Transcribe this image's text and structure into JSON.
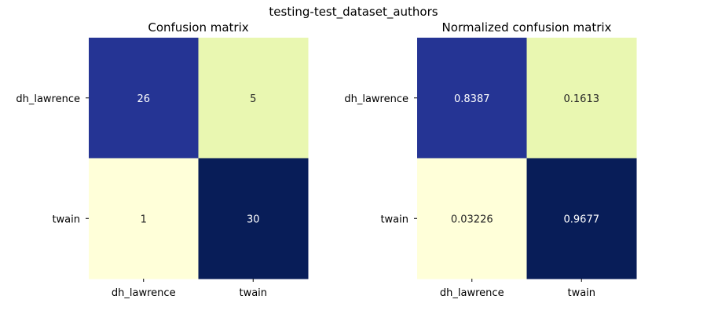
{
  "figure_title": "testing-test_dataset_authors",
  "chart_data": [
    {
      "type": "heatmap",
      "title": "Confusion matrix",
      "xlabel": "",
      "ylabel": "",
      "x_categories": [
        "dh_lawrence",
        "twain"
      ],
      "y_categories": [
        "dh_lawrence",
        "twain"
      ],
      "values": [
        [
          26,
          5
        ],
        [
          1,
          30
        ]
      ],
      "labels": [
        [
          "26",
          "5"
        ],
        [
          "1",
          "30"
        ]
      ],
      "colormap": "YlGnBu",
      "cell_colors": [
        [
          "#253494",
          "#e9f7b1"
        ],
        [
          "#ffffd9",
          "#081d58"
        ]
      ],
      "text_colors": [
        [
          "#ffffff",
          "#262626"
        ],
        [
          "#262626",
          "#ffffff"
        ]
      ],
      "colorbar": false
    },
    {
      "type": "heatmap",
      "title": "Normalized confusion matrix",
      "xlabel": "",
      "ylabel": "",
      "x_categories": [
        "dh_lawrence",
        "twain"
      ],
      "y_categories": [
        "dh_lawrence",
        "twain"
      ],
      "values": [
        [
          0.8387,
          0.1613
        ],
        [
          0.03226,
          0.9677
        ]
      ],
      "labels": [
        [
          "0.8387",
          "0.1613"
        ],
        [
          "0.03226",
          "0.9677"
        ]
      ],
      "colormap": "YlGnBu",
      "cell_colors": [
        [
          "#253494",
          "#e9f7b1"
        ],
        [
          "#ffffd9",
          "#081d58"
        ]
      ],
      "text_colors": [
        [
          "#ffffff",
          "#262626"
        ],
        [
          "#262626",
          "#ffffff"
        ]
      ],
      "colorbar": false
    }
  ]
}
